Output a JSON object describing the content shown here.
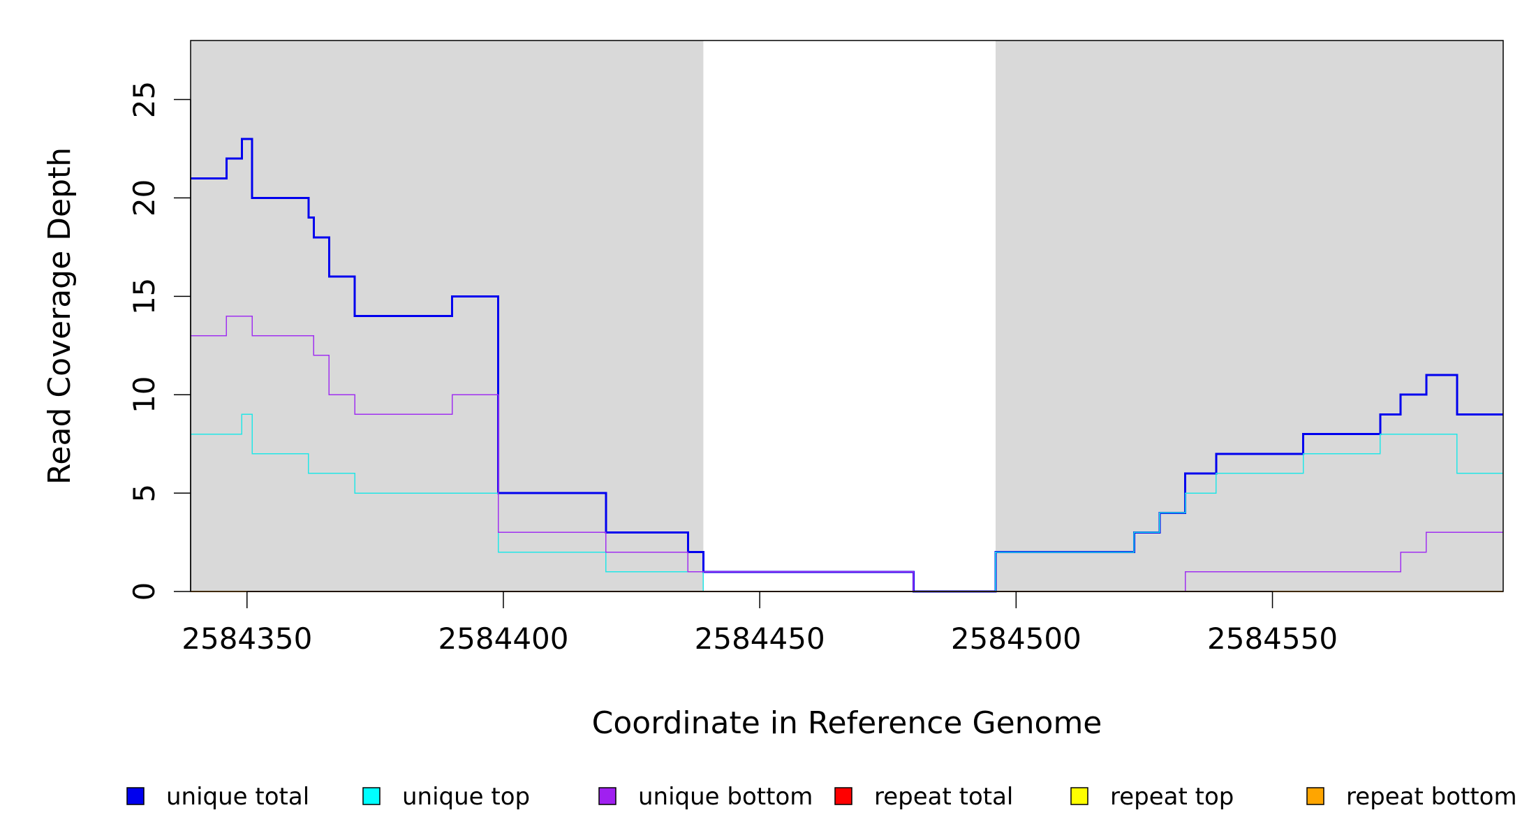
{
  "chart_data": {
    "type": "line",
    "step": true,
    "title": "",
    "xlabel": "Coordinate in Reference Genome",
    "ylabel": "Read Coverage Depth",
    "xlim": [
      2584339,
      2584595
    ],
    "ylim": [
      0,
      28
    ],
    "x_ticks": [
      2584350,
      2584400,
      2584450,
      2584500,
      2584550
    ],
    "x_tick_labels": [
      "2584350",
      "2584400",
      "2584450",
      "2584500",
      "2584550"
    ],
    "y_ticks": [
      0,
      5,
      10,
      15,
      20,
      25
    ],
    "y_tick_labels": [
      "0",
      "5",
      "10",
      "15",
      "20",
      "25"
    ],
    "grid": false,
    "shaded_regions": [
      {
        "x0": 2584339,
        "x1": 2584439,
        "color": "#d9d9d9"
      },
      {
        "x0": 2584496,
        "x1": 2584595,
        "color": "#d9d9d9"
      }
    ],
    "legend_placement": "bottom",
    "series": [
      {
        "name": "unique total",
        "color": "#0000ee",
        "width": 3,
        "points": [
          [
            2584339,
            21
          ],
          [
            2584346,
            22
          ],
          [
            2584349,
            23
          ],
          [
            2584351,
            20
          ],
          [
            2584362,
            19
          ],
          [
            2584363,
            18
          ],
          [
            2584366,
            16
          ],
          [
            2584371,
            14
          ],
          [
            2584390,
            15
          ],
          [
            2584399,
            5
          ],
          [
            2584420,
            3
          ],
          [
            2584436,
            2
          ],
          [
            2584439,
            1
          ],
          [
            2584480,
            0
          ],
          [
            2584496,
            2
          ],
          [
            2584523,
            3
          ],
          [
            2584528,
            4
          ],
          [
            2584533,
            6
          ],
          [
            2584539,
            7
          ],
          [
            2584556,
            8
          ],
          [
            2584571,
            9
          ],
          [
            2584575,
            10
          ],
          [
            2584580,
            11
          ],
          [
            2584586,
            9
          ],
          [
            2584595,
            9
          ]
        ]
      },
      {
        "name": "unique top",
        "color": "#22e6e6",
        "width": 1.5,
        "points": [
          [
            2584339,
            8
          ],
          [
            2584349,
            9
          ],
          [
            2584351,
            7
          ],
          [
            2584362,
            6
          ],
          [
            2584371,
            5
          ],
          [
            2584399,
            2
          ],
          [
            2584420,
            1
          ],
          [
            2584439,
            0
          ],
          [
            2584496,
            2
          ],
          [
            2584523,
            3
          ],
          [
            2584528,
            4
          ],
          [
            2584533,
            5
          ],
          [
            2584539,
            6
          ],
          [
            2584556,
            7
          ],
          [
            2584571,
            8
          ],
          [
            2584586,
            6
          ],
          [
            2584595,
            6
          ]
        ]
      },
      {
        "name": "unique bottom",
        "color": "#a030f0",
        "width": 1.5,
        "points": [
          [
            2584339,
            13
          ],
          [
            2584346,
            14
          ],
          [
            2584351,
            13
          ],
          [
            2584363,
            12
          ],
          [
            2584366,
            10
          ],
          [
            2584371,
            9
          ],
          [
            2584390,
            10
          ],
          [
            2584399,
            3
          ],
          [
            2584420,
            2
          ],
          [
            2584436,
            1
          ],
          [
            2584480,
            0
          ],
          [
            2584533,
            1
          ],
          [
            2584575,
            2
          ],
          [
            2584580,
            3
          ],
          [
            2584595,
            3
          ]
        ]
      },
      {
        "name": "repeat total",
        "color": "#ff0000",
        "width": 1.5,
        "points": [
          [
            2584339,
            0
          ],
          [
            2584595,
            0
          ]
        ]
      },
      {
        "name": "repeat top",
        "color": "#ffff00",
        "width": 1.5,
        "points": [
          [
            2584339,
            0
          ],
          [
            2584595,
            0
          ]
        ]
      },
      {
        "name": "repeat bottom",
        "color": "#ffa500",
        "width": 2,
        "points": [
          [
            2584339,
            0
          ],
          [
            2584595,
            0
          ]
        ]
      }
    ],
    "legend": [
      {
        "label": "unique total",
        "color": "#0000ee"
      },
      {
        "label": "unique top",
        "color": "#00ffff"
      },
      {
        "label": "unique bottom",
        "color": "#a020f0"
      },
      {
        "label": "repeat total",
        "color": "#ff0000"
      },
      {
        "label": "repeat top",
        "color": "#ffff00"
      },
      {
        "label": "repeat bottom",
        "color": "#ffa500"
      }
    ]
  }
}
